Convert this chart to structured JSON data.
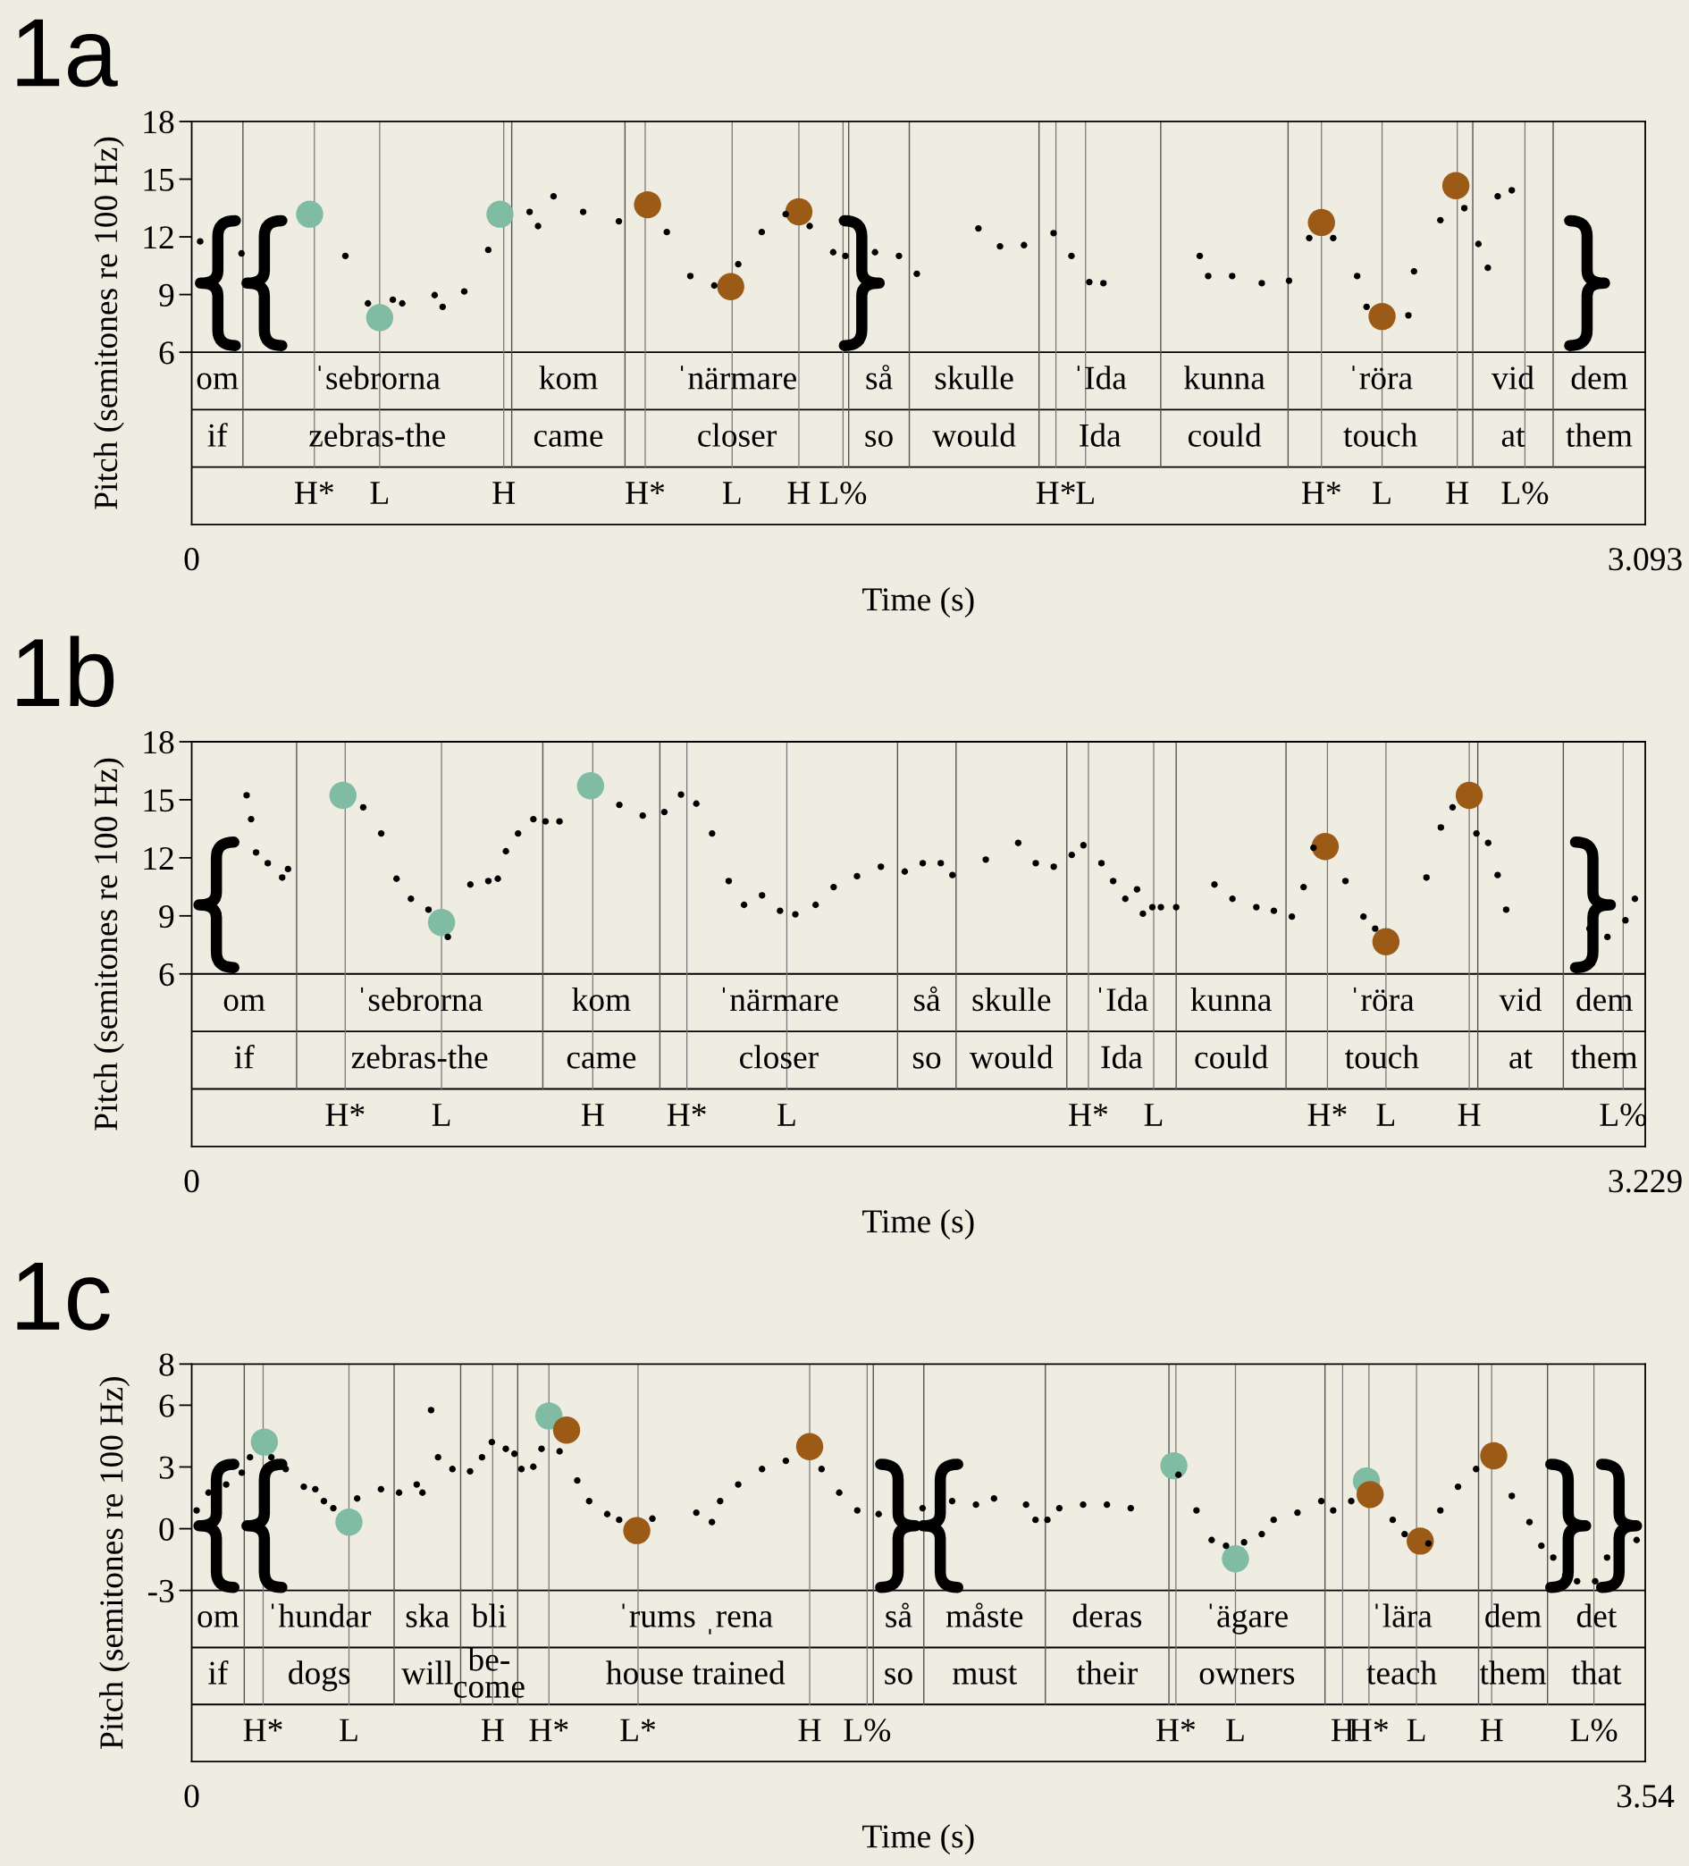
{
  "chart_data": [
    {
      "type": "scatter",
      "title": "1a",
      "xlabel": "Time (s)",
      "ylabel": "Pitch (semitones re 100 Hz)",
      "xlim": [
        0,
        3.093
      ],
      "xticks": [
        0,
        3.093
      ],
      "ylim": [
        -2.96,
        18
      ],
      "yticks": [
        6,
        9,
        12,
        15,
        18
      ],
      "marker": "circle",
      "series": [
        {
          "color": "#000000",
          "x": [
            0.018,
            0.106,
            0.327,
            0.375,
            0.428,
            0.448,
            0.517,
            0.534,
            0.58,
            0.631,
            0.719,
            0.737,
            0.77,
            0.833,
            0.909,
            1.011,
            1.061,
            1.112,
            1.163,
            1.213,
            1.264,
            1.315,
            1.365,
            1.391,
            1.454,
            1.505,
            1.543,
            1.674,
            1.72,
            1.771,
            1.834,
            1.872,
            1.91,
            1.94,
            2.145,
            2.163,
            2.214,
            2.277,
            2.335,
            2.378,
            2.429,
            2.48,
            2.5,
            2.589,
            2.601,
            2.657,
            2.708,
            2.738,
            2.758,
            2.779,
            2.809
          ],
          "values": [
            11.76,
            11.14,
            11.01,
            8.54,
            8.73,
            8.54,
            8.97,
            8.36,
            9.16,
            11.32,
            13.3,
            12.56,
            14.11,
            13.3,
            12.81,
            12.25,
            9.96,
            9.47,
            10.58,
            12.25,
            13.18,
            12.56,
            11.2,
            11.01,
            11.2,
            11.01,
            10.08,
            12.44,
            11.51,
            11.57,
            12.19,
            11.01,
            9.65,
            9.59,
            11.01,
            9.96,
            9.96,
            9.59,
            9.72,
            11.94,
            11.94,
            9.96,
            8.36,
            7.92,
            10.21,
            12.87,
            13.49,
            11.63,
            10.39,
            14.11,
            14.42
          ]
        },
        {
          "color": "#80bba4",
          "x": [
            0.251,
            0.4,
            0.656
          ],
          "values": [
            13.18,
            7.8,
            13.18
          ]
        },
        {
          "color": "#9c5a17",
          "x": [
            0.97,
            1.147,
            1.292,
            2.404,
            2.533,
            2.69
          ],
          "values": [
            13.67,
            9.41,
            13.3,
            12.75,
            7.86,
            14.66
          ]
        }
      ],
      "ref_lines": [
        {
          "axis": "x",
          "value": 0.109
        },
        {
          "axis": "x",
          "value": 0.681
        },
        {
          "axis": "x",
          "value": 0.922
        },
        {
          "axis": "x",
          "value": 1.398
        },
        {
          "axis": "x",
          "value": 1.527
        },
        {
          "axis": "x",
          "value": 1.803
        },
        {
          "axis": "x",
          "value": 2.062
        },
        {
          "axis": "x",
          "value": 2.333
        },
        {
          "axis": "x",
          "value": 2.726
        },
        {
          "axis": "x",
          "value": 2.897
        },
        {
          "axis": "x",
          "value": 0.261,
          "label": "H*"
        },
        {
          "axis": "x",
          "value": 0.4,
          "label": "L"
        },
        {
          "axis": "x",
          "value": 0.664,
          "label": "H"
        },
        {
          "axis": "x",
          "value": 0.965,
          "label": "H*"
        },
        {
          "axis": "x",
          "value": 1.15,
          "label": "L"
        },
        {
          "axis": "x",
          "value": 1.292,
          "label": "H"
        },
        {
          "axis": "x",
          "value": 1.386,
          "label": "L%"
        },
        {
          "axis": "x",
          "value": 1.839,
          "label": "H*"
        },
        {
          "axis": "x",
          "value": 1.902,
          "label": "L"
        },
        {
          "axis": "x",
          "value": 2.404,
          "label": "H*"
        },
        {
          "axis": "x",
          "value": 2.533,
          "label": "L"
        },
        {
          "axis": "x",
          "value": 2.693,
          "label": "H"
        },
        {
          "axis": "x",
          "value": 2.837,
          "label": "L%"
        }
      ],
      "annotations": [
        "om",
        "ˈsebrorna",
        "kom",
        "ˈnärmare",
        "så",
        "skulle",
        "ˈIda",
        "kunna",
        "ˈröra",
        "vid",
        "dem",
        "if",
        "zebras-the",
        "came",
        "closer",
        "so",
        "would",
        "Ida",
        "could",
        "touch",
        "at",
        "them"
      ]
    },
    {
      "type": "scatter",
      "title": "1b",
      "xlabel": "Time (s)",
      "ylabel": "Pitch (semitones re 100 Hz)",
      "xlim": [
        0,
        3.229
      ],
      "xticks": [
        0,
        3.229
      ],
      "ylim": [
        -2.92,
        18
      ],
      "yticks": [
        6,
        9,
        12,
        15,
        18
      ],
      "marker": "circle",
      "series": [
        {
          "color": "#000000",
          "x": [
            0.122,
            0.132,
            0.143,
            0.169,
            0.201,
            0.214,
            0.381,
            0.421,
            0.455,
            0.487,
            0.526,
            0.569,
            0.619,
            0.659,
            0.68,
            0.698,
            0.725,
            0.759,
            0.786,
            0.817,
            0.95,
            1.002,
            1.05,
            1.087,
            1.121,
            1.156,
            1.193,
            1.227,
            1.267,
            1.307,
            1.341,
            1.386,
            1.426,
            1.478,
            1.531,
            1.584,
            1.624,
            1.664,
            1.69,
            1.764,
            1.836,
            1.875,
            1.915,
            1.955,
            1.981,
            2.021,
            2.047,
            2.074,
            2.1,
            2.113,
            2.134,
            2.153,
            2.187,
            2.272,
            2.312,
            2.365,
            2.404,
            2.444,
            2.47,
            2.492,
            2.563,
            2.603,
            2.629,
            2.743,
            2.775,
            2.801,
            2.854,
            2.88,
            2.901,
            2.92,
            3.105,
            3.145,
            3.185,
            3.206
          ],
          "values": [
            15.23,
            14.0,
            12.28,
            11.72,
            10.98,
            11.42,
            14.61,
            13.26,
            10.92,
            9.88,
            9.32,
            7.91,
            10.62,
            10.8,
            10.92,
            12.34,
            13.26,
            14.0,
            13.88,
            13.88,
            14.74,
            14.18,
            14.37,
            15.27,
            14.8,
            13.26,
            10.8,
            9.57,
            10.06,
            9.26,
            9.08,
            9.57,
            10.49,
            11.05,
            11.54,
            11.29,
            11.72,
            11.72,
            11.11,
            11.91,
            12.77,
            11.72,
            11.54,
            12.15,
            12.65,
            11.72,
            10.8,
            9.88,
            10.37,
            9.11,
            9.45,
            9.45,
            9.45,
            10.62,
            9.88,
            9.45,
            9.26,
            8.96,
            10.49,
            12.52,
            10.8,
            8.96,
            8.34,
            10.98,
            13.57,
            14.61,
            13.26,
            12.77,
            11.11,
            9.32,
            8.34,
            7.91,
            8.77,
            9.88
          ]
        },
        {
          "color": "#80bba4",
          "x": [
            0.336,
            0.555,
            0.886
          ],
          "values": [
            15.23,
            8.66,
            15.72
          ]
        },
        {
          "color": "#9c5a17",
          "x": [
            2.518,
            2.653,
            2.838
          ],
          "values": [
            12.58,
            7.66,
            15.23
          ]
        }
      ],
      "ref_lines": [
        {
          "axis": "x",
          "value": 0.233
        },
        {
          "axis": "x",
          "value": 0.78
        },
        {
          "axis": "x",
          "value": 1.04
        },
        {
          "axis": "x",
          "value": 1.568
        },
        {
          "axis": "x",
          "value": 1.698
        },
        {
          "axis": "x",
          "value": 1.944
        },
        {
          "axis": "x",
          "value": 2.187
        },
        {
          "axis": "x",
          "value": 2.431
        },
        {
          "axis": "x",
          "value": 2.857
        },
        {
          "axis": "x",
          "value": 3.047
        },
        {
          "axis": "x",
          "value": 0.341,
          "label": "H*"
        },
        {
          "axis": "x",
          "value": 0.555,
          "label": "L"
        },
        {
          "axis": "x",
          "value": 0.891,
          "label": "H"
        },
        {
          "axis": "x",
          "value": 1.1,
          "label": "H*"
        },
        {
          "axis": "x",
          "value": 1.322,
          "label": "L"
        },
        {
          "axis": "x",
          "value": 1.992,
          "label": "H*"
        },
        {
          "axis": "x",
          "value": 2.137,
          "label": "L"
        },
        {
          "axis": "x",
          "value": 2.523,
          "label": "H*"
        },
        {
          "axis": "x",
          "value": 2.653,
          "label": "L"
        },
        {
          "axis": "x",
          "value": 2.838,
          "label": "H"
        },
        {
          "axis": "x",
          "value": 3.18,
          "label": "L%"
        }
      ],
      "annotations": [
        "om",
        "ˈsebrorna",
        "kom",
        "ˈnärmare",
        "så",
        "skulle",
        "ˈIda",
        "kunna",
        "ˈröra",
        "vid",
        "dem",
        "if",
        "zebras-the",
        "came",
        "closer",
        "so",
        "would",
        "Ida",
        "could",
        "touch",
        "at",
        "them"
      ]
    },
    {
      "type": "scatter",
      "title": "1c",
      "xlabel": "Time (s)",
      "ylabel": "Pitch (semitones re 100 Hz)",
      "xlim": [
        0,
        3.54
      ],
      "xticks": [
        0,
        3.54
      ],
      "ylim": [
        -11.31,
        8
      ],
      "yticks": [
        -3,
        0,
        3,
        6,
        8
      ],
      "marker": "circle",
      "series": [
        {
          "color": "#000000",
          "x": [
            0.012,
            0.041,
            0.084,
            0.122,
            0.142,
            0.194,
            0.229,
            0.273,
            0.301,
            0.322,
            0.345,
            0.403,
            0.461,
            0.505,
            0.548,
            0.562,
            0.583,
            0.6,
            0.635,
            0.678,
            0.707,
            0.731,
            0.765,
            0.786,
            0.803,
            0.832,
            0.852,
            0.896,
            0.939,
            0.968,
            1.012,
            1.041,
            1.122,
            1.229,
            1.267,
            1.287,
            1.331,
            1.389,
            1.447,
            1.534,
            1.577,
            1.621,
            1.673,
            1.78,
            1.852,
            1.91,
            1.954,
            2.032,
            2.055,
            2.084,
            2.113,
            2.171,
            2.229,
            2.287,
            2.403,
            2.447,
            2.484,
            2.519,
            2.563,
            2.606,
            2.635,
            2.693,
            2.751,
            2.78,
            2.824,
            2.925,
            2.954,
            3.012,
            3.041,
            3.084,
            3.128,
            3.215,
            3.258,
            3.287,
            3.316,
            3.345,
            3.374,
            3.418,
            3.447,
            3.519
          ],
          "values": [
            0.89,
            1.75,
            2.15,
            2.72,
            3.47,
            3.47,
            2.9,
            2.04,
            1.92,
            1.34,
            1.0,
            1.47,
            1.92,
            1.75,
            2.15,
            1.75,
            5.76,
            3.47,
            2.9,
            2.79,
            3.47,
            4.21,
            3.88,
            3.64,
            2.9,
            3.01,
            3.88,
            3.76,
            2.34,
            1.34,
            0.71,
            0.43,
            0.49,
            0.78,
            0.32,
            1.34,
            2.15,
            2.9,
            3.3,
            2.9,
            1.75,
            0.89,
            0.71,
            1.0,
            1.34,
            1.17,
            1.47,
            1.17,
            0.43,
            0.43,
            1.0,
            1.17,
            1.17,
            1.0,
            2.62,
            0.89,
            -0.55,
            -0.83,
            -0.66,
            -0.26,
            0.43,
            0.78,
            1.34,
            0.89,
            1.34,
            0.43,
            -0.26,
            -0.72,
            0.89,
            2.04,
            2.9,
            1.59,
            0.32,
            -0.83,
            -1.4,
            -2.26,
            -2.55,
            -2.55,
            -1.4,
            -0.55
          ]
        },
        {
          "color": "#80bba4",
          "x": [
            0.177,
            0.383,
            0.87,
            2.392,
            2.542,
            2.861
          ],
          "values": [
            4.21,
            0.32,
            5.48,
            3.06,
            -1.46,
            2.32
          ]
        },
        {
          "color": "#9c5a17",
          "x": [
            0.913,
            1.084,
            1.505,
            2.87,
            2.992,
            3.171
          ],
          "values": [
            4.79,
            -0.09,
            3.99,
            1.66,
            -0.6,
            3.54
          ]
        }
      ],
      "ref_lines": [
        {
          "axis": "x",
          "value": 0.128
        },
        {
          "axis": "x",
          "value": 0.493
        },
        {
          "axis": "x",
          "value": 0.655
        },
        {
          "axis": "x",
          "value": 0.794
        },
        {
          "axis": "x",
          "value": 1.66
        },
        {
          "axis": "x",
          "value": 1.783
        },
        {
          "axis": "x",
          "value": 2.079
        },
        {
          "axis": "x",
          "value": 2.38
        },
        {
          "axis": "x",
          "value": 2.76
        },
        {
          "axis": "x",
          "value": 3.134
        },
        {
          "axis": "x",
          "value": 3.302
        },
        {
          "axis": "x",
          "value": 0.174,
          "label": "H*"
        },
        {
          "axis": "x",
          "value": 0.383,
          "label": "L"
        },
        {
          "axis": "x",
          "value": 0.733,
          "label": "H"
        },
        {
          "axis": "x",
          "value": 0.87,
          "label": "H*"
        },
        {
          "axis": "x",
          "value": 1.087,
          "label": "L*"
        },
        {
          "axis": "x",
          "value": 1.505,
          "label": "H"
        },
        {
          "axis": "x",
          "value": 1.645,
          "label": "L%"
        },
        {
          "axis": "x",
          "value": 2.397,
          "label": "H*"
        },
        {
          "axis": "x",
          "value": 2.542,
          "label": "L"
        },
        {
          "axis": "x",
          "value": 2.803,
          "label": "H"
        },
        {
          "axis": "x",
          "value": 2.867,
          "label": "H*"
        },
        {
          "axis": "x",
          "value": 2.983,
          "label": "L"
        },
        {
          "axis": "x",
          "value": 3.166,
          "label": "H"
        },
        {
          "axis": "x",
          "value": 3.415,
          "label": "L%"
        }
      ],
      "annotations": [
        "om",
        "ˈhundar",
        "ska",
        "bli",
        "ˈrums ˌrena",
        "så",
        "måste",
        "deras",
        "ˈägare",
        "ˈlära",
        "dem",
        "det",
        "if",
        "dogs",
        "will",
        "be-\ncome",
        "house trained",
        "so",
        "must",
        "their",
        "owners",
        "teach",
        "them",
        "that"
      ]
    }
  ]
}
